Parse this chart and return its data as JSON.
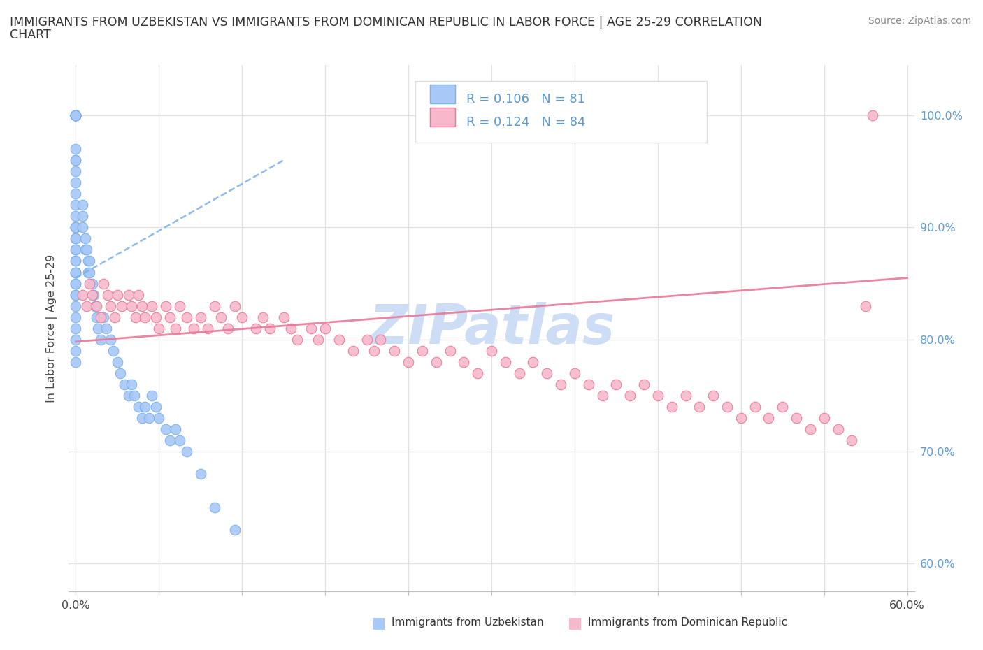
{
  "title_line1": "IMMIGRANTS FROM UZBEKISTAN VS IMMIGRANTS FROM DOMINICAN REPUBLIC IN LABOR FORCE | AGE 25-29 CORRELATION",
  "title_line2": "CHART",
  "source_text": "Source: ZipAtlas.com",
  "ylabel_label": "In Labor Force | Age 25-29",
  "ytick_values": [
    0.6,
    0.7,
    0.8,
    0.9,
    1.0
  ],
  "ytick_labels": [
    "60.0%",
    "70.0%",
    "80.0%",
    "90.0%",
    "100.0%"
  ],
  "xlim": [
    -0.005,
    0.605
  ],
  "ylim": [
    0.575,
    1.045
  ],
  "color_uzb": "#a8c8f8",
  "color_dom": "#f8b8cc",
  "edge_uzb": "#7ab0e8",
  "edge_dom": "#e87898",
  "trendline_color_uzb": "#7ab0e8",
  "trendline_color_dom": "#e87898",
  "watermark_text": "ZIPatlas",
  "watermark_color": "#ccddf5",
  "legend_r_uzb": "R = 0.106",
  "legend_n_uzb": "N = 81",
  "legend_r_dom": "R = 0.124",
  "legend_n_dom": "N = 84",
  "uzb_x": [
    0.0,
    0.0,
    0.0,
    0.0,
    0.0,
    0.0,
    0.0,
    0.0,
    0.0,
    0.0,
    0.0,
    0.0,
    0.0,
    0.0,
    0.0,
    0.0,
    0.0,
    0.0,
    0.0,
    0.0,
    0.0,
    0.0,
    0.0,
    0.0,
    0.0,
    0.0,
    0.0,
    0.0,
    0.0,
    0.0,
    0.0,
    0.0,
    0.0,
    0.0,
    0.0,
    0.0,
    0.0,
    0.0,
    0.0,
    0.0,
    0.005,
    0.005,
    0.005,
    0.007,
    0.007,
    0.008,
    0.009,
    0.009,
    0.01,
    0.01,
    0.012,
    0.013,
    0.014,
    0.015,
    0.016,
    0.018,
    0.02,
    0.022,
    0.025,
    0.027,
    0.03,
    0.032,
    0.035,
    0.038,
    0.04,
    0.042,
    0.045,
    0.048,
    0.05,
    0.053,
    0.055,
    0.058,
    0.06,
    0.065,
    0.068,
    0.072,
    0.075,
    0.08,
    0.09,
    0.1,
    0.115
  ],
  "uzb_y": [
    1.0,
    1.0,
    1.0,
    1.0,
    1.0,
    1.0,
    1.0,
    1.0,
    1.0,
    1.0,
    0.97,
    0.96,
    0.96,
    0.95,
    0.94,
    0.93,
    0.92,
    0.91,
    0.9,
    0.89,
    0.88,
    0.87,
    0.86,
    0.85,
    0.84,
    0.9,
    0.9,
    0.89,
    0.88,
    0.87,
    0.86,
    0.86,
    0.85,
    0.84,
    0.83,
    0.82,
    0.81,
    0.8,
    0.79,
    0.78,
    0.92,
    0.91,
    0.9,
    0.89,
    0.88,
    0.88,
    0.87,
    0.86,
    0.87,
    0.86,
    0.85,
    0.84,
    0.83,
    0.82,
    0.81,
    0.8,
    0.82,
    0.81,
    0.8,
    0.79,
    0.78,
    0.77,
    0.76,
    0.75,
    0.76,
    0.75,
    0.74,
    0.73,
    0.74,
    0.73,
    0.75,
    0.74,
    0.73,
    0.72,
    0.71,
    0.72,
    0.71,
    0.7,
    0.68,
    0.65,
    0.63
  ],
  "dom_x": [
    0.005,
    0.008,
    0.01,
    0.012,
    0.015,
    0.018,
    0.02,
    0.023,
    0.025,
    0.028,
    0.03,
    0.033,
    0.038,
    0.04,
    0.043,
    0.045,
    0.048,
    0.05,
    0.055,
    0.058,
    0.06,
    0.065,
    0.068,
    0.072,
    0.075,
    0.08,
    0.085,
    0.09,
    0.095,
    0.1,
    0.105,
    0.11,
    0.115,
    0.12,
    0.13,
    0.135,
    0.14,
    0.15,
    0.155,
    0.16,
    0.17,
    0.175,
    0.18,
    0.19,
    0.2,
    0.21,
    0.215,
    0.22,
    0.23,
    0.24,
    0.25,
    0.26,
    0.27,
    0.28,
    0.29,
    0.3,
    0.31,
    0.32,
    0.33,
    0.34,
    0.35,
    0.36,
    0.37,
    0.38,
    0.39,
    0.4,
    0.41,
    0.42,
    0.43,
    0.44,
    0.45,
    0.46,
    0.47,
    0.48,
    0.49,
    0.5,
    0.51,
    0.52,
    0.53,
    0.54,
    0.55,
    0.56,
    0.57,
    0.575
  ],
  "dom_y": [
    0.84,
    0.83,
    0.85,
    0.84,
    0.83,
    0.82,
    0.85,
    0.84,
    0.83,
    0.82,
    0.84,
    0.83,
    0.84,
    0.83,
    0.82,
    0.84,
    0.83,
    0.82,
    0.83,
    0.82,
    0.81,
    0.83,
    0.82,
    0.81,
    0.83,
    0.82,
    0.81,
    0.82,
    0.81,
    0.83,
    0.82,
    0.81,
    0.83,
    0.82,
    0.81,
    0.82,
    0.81,
    0.82,
    0.81,
    0.8,
    0.81,
    0.8,
    0.81,
    0.8,
    0.79,
    0.8,
    0.79,
    0.8,
    0.79,
    0.78,
    0.79,
    0.78,
    0.79,
    0.78,
    0.77,
    0.79,
    0.78,
    0.77,
    0.78,
    0.77,
    0.76,
    0.77,
    0.76,
    0.75,
    0.76,
    0.75,
    0.76,
    0.75,
    0.74,
    0.75,
    0.74,
    0.75,
    0.74,
    0.73,
    0.74,
    0.73,
    0.74,
    0.73,
    0.72,
    0.73,
    0.72,
    0.71,
    0.83,
    1.0
  ]
}
